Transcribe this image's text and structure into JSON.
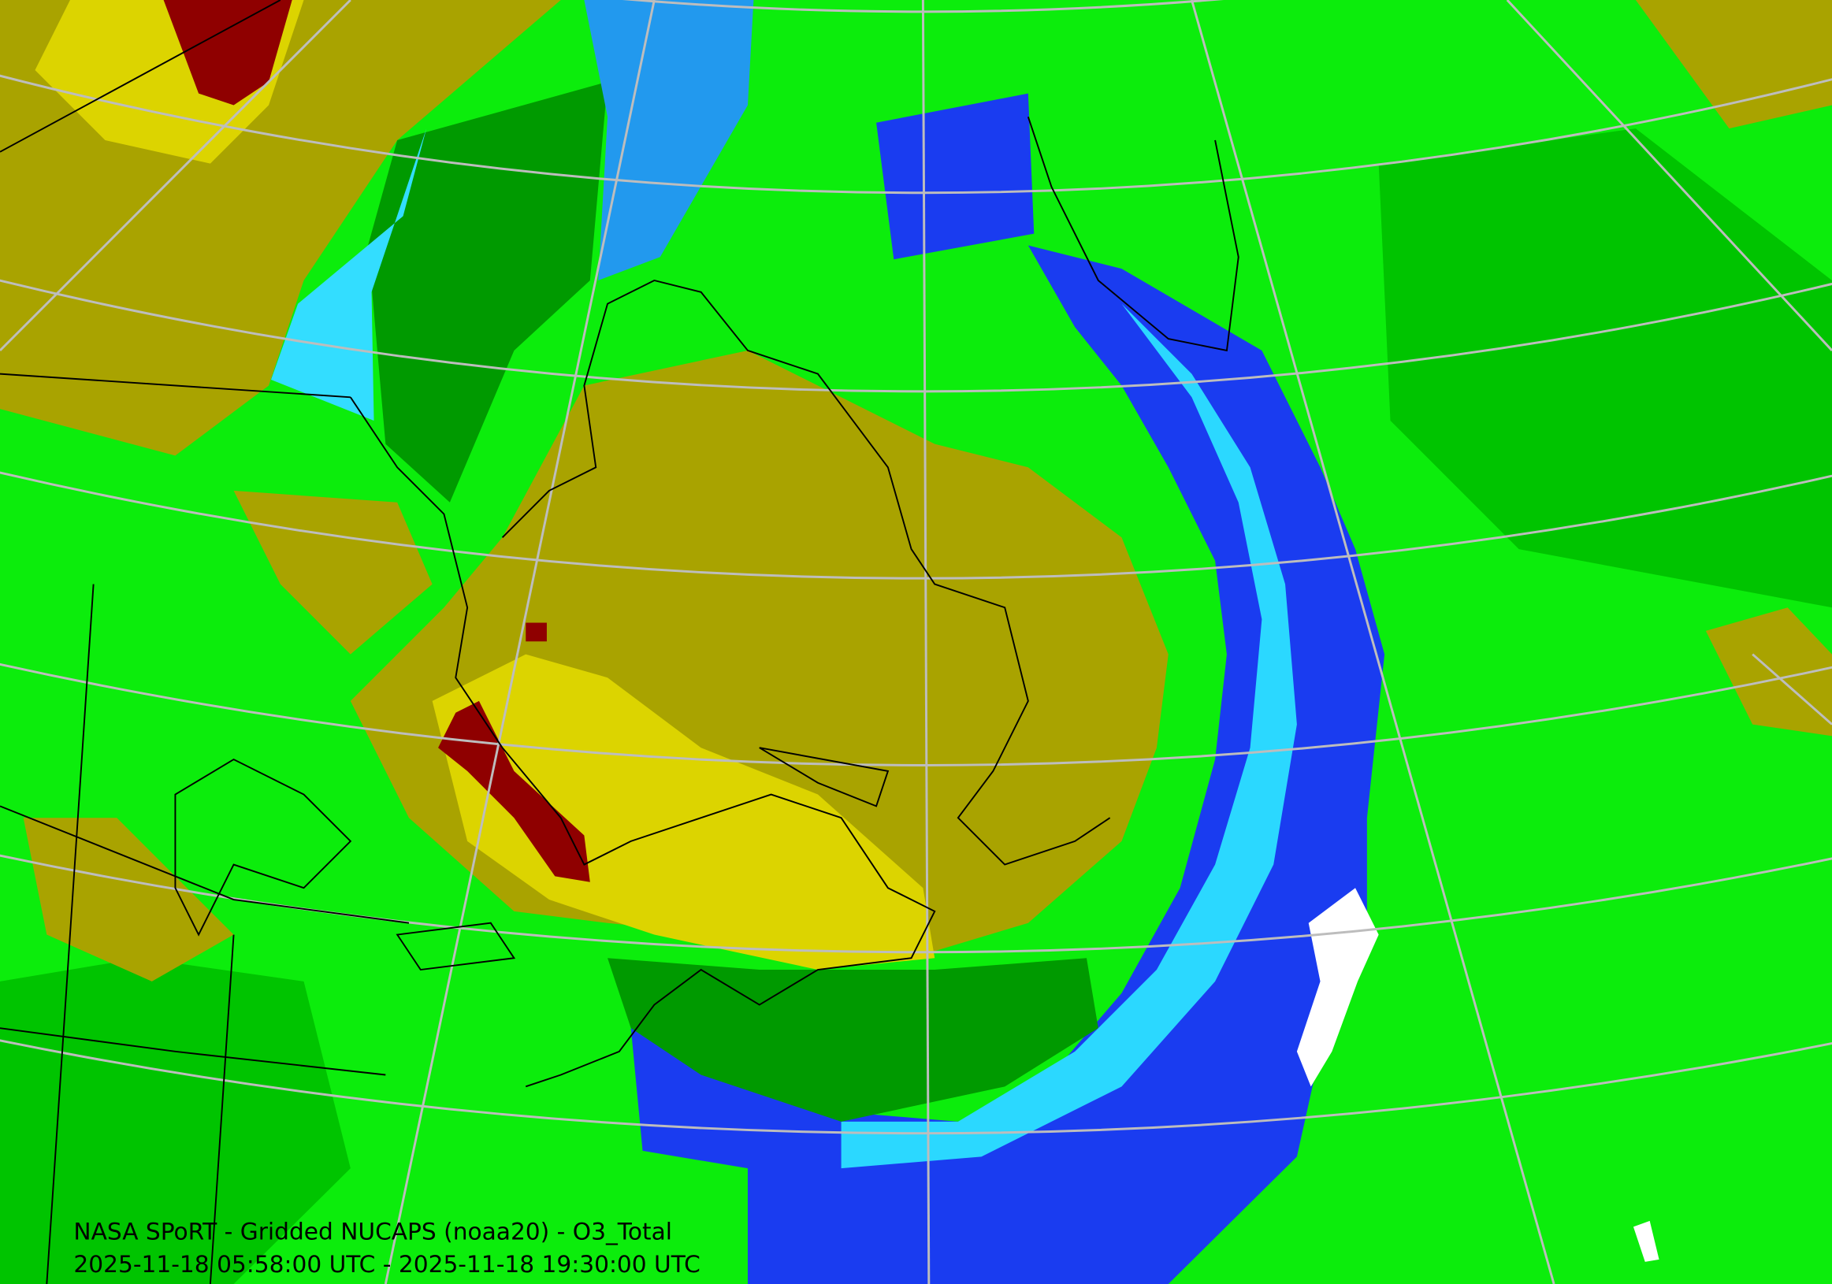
{
  "caption": {
    "line1": "NASA SPoRT - Gridded NUCAPS (noaa20) - O3_Total",
    "line2": "2025-11-18 05:58:00 UTC - 2025-11-18 19:30:00 UTC"
  }
}
